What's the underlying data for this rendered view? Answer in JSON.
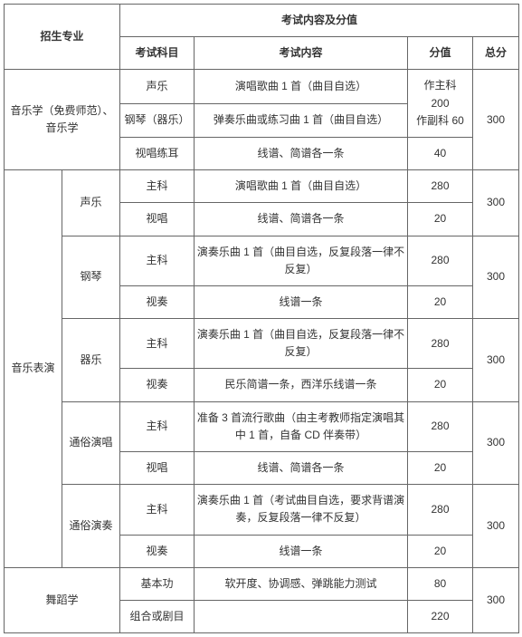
{
  "header": {
    "major_col": "招生专业",
    "exam_group": "考试内容及分值",
    "subject": "考试科目",
    "content": "考试内容",
    "score": "分值",
    "total": "总分"
  },
  "majors": {
    "musicology": "音乐学（免费师范）、音乐学",
    "perform": "音乐表演",
    "dance": "舞蹈学"
  },
  "subs": {
    "vocal": "声乐",
    "piano": "钢琴",
    "inst": "器乐",
    "pop_sing": "通俗演唱",
    "pop_play": "通俗演奏"
  },
  "subjects": {
    "voice": "声乐",
    "piano_inst": "钢琴（器乐）",
    "sight_ear": "视唱练耳",
    "main": "主科",
    "sight_sing": "视唱",
    "sight_play": "视奏",
    "basic": "基本功",
    "combo": "组合或剧目"
  },
  "contents": {
    "m1": "演唱歌曲 1 首（曲目自选）",
    "m2": "弹奏乐曲或练习曲 1 首（曲目自选）",
    "m3": "线谱、简谱各一条",
    "v_main": "演唱歌曲 1 首（曲目自选）",
    "p_main": "演奏乐曲 1 首（曲目自选，反复段落一律不反复）",
    "p_sight": "线谱一条",
    "i_main": "演奏乐曲 1 首（曲目自选，反复段落一律不反复）",
    "i_sight": "民乐简谱一条，西洋乐线谱一条",
    "ps_main": "准备 3 首流行歌曲（由主考教师指定演唱其中 1 首，自备 CD 伴奏带）",
    "pp_main": "演奏乐曲 1 首（考试曲目自选，要求背谱演奏，反复段落一律不反复）",
    "pp_sight": "线谱一条",
    "d_basic": "软开度、协调感、弹跳能力测试"
  },
  "scores": {
    "m_main": "作主科\n200\n作副科 60",
    "m_sight": "40",
    "s280": "280",
    "s20": "20",
    "s80": "80",
    "s220": "220"
  },
  "totals": {
    "t300": "300"
  }
}
